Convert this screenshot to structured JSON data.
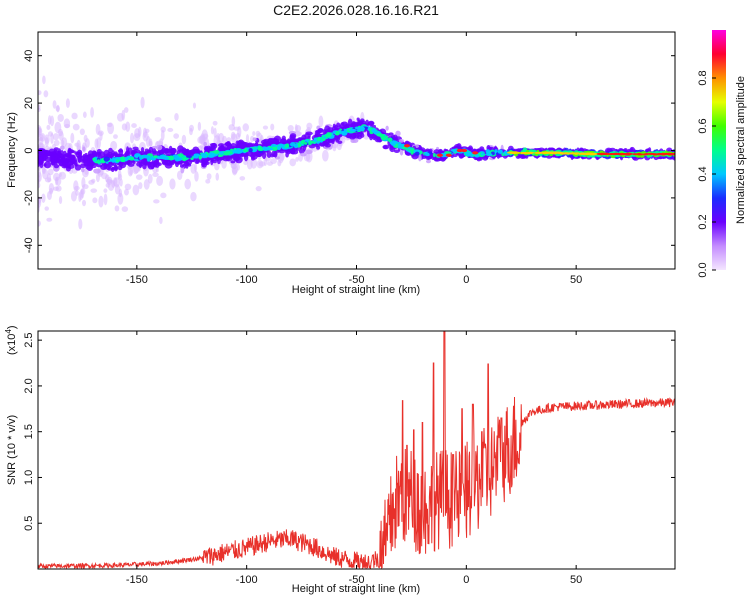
{
  "figure_title": "C2E2.2026.028.16.16.R21",
  "chart_data": [
    {
      "type": "heatmap",
      "title": "C2E2.2026.028.16.16.R21",
      "xlabel": "Height of straight line (km)",
      "ylabel": "Frequency (Hz)",
      "xlim": [
        -195,
        95
      ],
      "ylim": [
        -50,
        50
      ],
      "x_ticks": [
        -150,
        -100,
        -50,
        0,
        50
      ],
      "y_ticks": [
        -40,
        -20,
        0,
        20,
        40
      ],
      "colorbar": {
        "label": "Normalized spectral amplitude",
        "range": [
          0,
          1
        ],
        "ticks": [
          "0.0",
          "0.2",
          "0.4",
          "0.6",
          "0.8"
        ],
        "colormap": [
          "#e8c8ff",
          "#8a2be2",
          "#3010ff",
          "#00e0ff",
          "#00ff40",
          "#ffff00",
          "#ff2000",
          "#ff00ff"
        ]
      },
      "ridge_center_hz": [
        [
          -190,
          -3
        ],
        [
          -170,
          -4
        ],
        [
          -160,
          -4
        ],
        [
          -150,
          -3
        ],
        [
          -140,
          -3
        ],
        [
          -130,
          -3
        ],
        [
          -120,
          -2
        ],
        [
          -110,
          -1
        ],
        [
          -100,
          0
        ],
        [
          -90,
          1
        ],
        [
          -80,
          2
        ],
        [
          -70,
          4
        ],
        [
          -60,
          7
        ],
        [
          -50,
          9
        ],
        [
          -45,
          10
        ],
        [
          -40,
          7
        ],
        [
          -35,
          4
        ],
        [
          -30,
          2
        ],
        [
          -25,
          0
        ],
        [
          -20,
          -1
        ],
        [
          -15,
          -2
        ],
        [
          -10,
          -2
        ],
        [
          -5,
          0
        ],
        [
          0,
          -1
        ],
        [
          5,
          -2
        ],
        [
          10,
          -1
        ],
        [
          20,
          -1
        ],
        [
          40,
          -1
        ],
        [
          60,
          -1.5
        ],
        [
          80,
          -1.5
        ],
        [
          95,
          -1.5
        ]
      ]
    },
    {
      "type": "line",
      "xlabel": "Height of straight line (km)",
      "ylabel": "SNR (10 * v/v)",
      "y_multiplier_label": "(x10",
      "y_multiplier_exp": "4",
      "xlim": [
        -195,
        95
      ],
      "ylim": [
        0,
        2.6
      ],
      "x_ticks": [
        -150,
        -100,
        -50,
        0,
        50
      ],
      "y_ticks": [
        0.5,
        1.0,
        1.5,
        2.0,
        2.5
      ],
      "y_tick_labels": [
        "0.5",
        "1.0",
        "1.5",
        "2.0",
        "2.5"
      ],
      "series": [
        {
          "name": "SNR",
          "color": "#e8302a",
          "envelope": [
            [
              -195,
              0.03
            ],
            [
              -160,
              0.04
            ],
            [
              -140,
              0.06
            ],
            [
              -120,
              0.12
            ],
            [
              -110,
              0.18
            ],
            [
              -100,
              0.23
            ],
            [
              -90,
              0.3
            ],
            [
              -80,
              0.33
            ],
            [
              -70,
              0.25
            ],
            [
              -60,
              0.13
            ],
            [
              -50,
              0.08
            ],
            [
              -45,
              0.07
            ],
            [
              -40,
              0.12
            ],
            [
              -36,
              0.4
            ],
            [
              -33,
              0.8
            ],
            [
              -30,
              0.9
            ],
            [
              -25,
              0.9
            ],
            [
              -20,
              0.75
            ],
            [
              -15,
              0.85
            ],
            [
              -10,
              0.9
            ],
            [
              -5,
              0.85
            ],
            [
              0,
              0.95
            ],
            [
              5,
              1.05
            ],
            [
              10,
              1.15
            ],
            [
              15,
              1.3
            ],
            [
              20,
              1.45
            ],
            [
              25,
              1.6
            ],
            [
              30,
              1.72
            ],
            [
              40,
              1.77
            ],
            [
              50,
              1.78
            ],
            [
              70,
              1.8
            ],
            [
              95,
              1.82
            ]
          ],
          "peaks": [
            [
              -29,
              1.84
            ],
            [
              -24,
              1.52
            ],
            [
              -15,
              2.25
            ],
            [
              -10,
              2.62
            ],
            [
              -2,
              1.75
            ],
            [
              3,
              1.8
            ],
            [
              10,
              2.24
            ],
            [
              -27,
              1.35
            ],
            [
              -20,
              1.6
            ],
            [
              -6,
              1.25
            ],
            [
              7,
              1.5
            ],
            [
              16,
              1.65
            ]
          ]
        }
      ]
    }
  ]
}
